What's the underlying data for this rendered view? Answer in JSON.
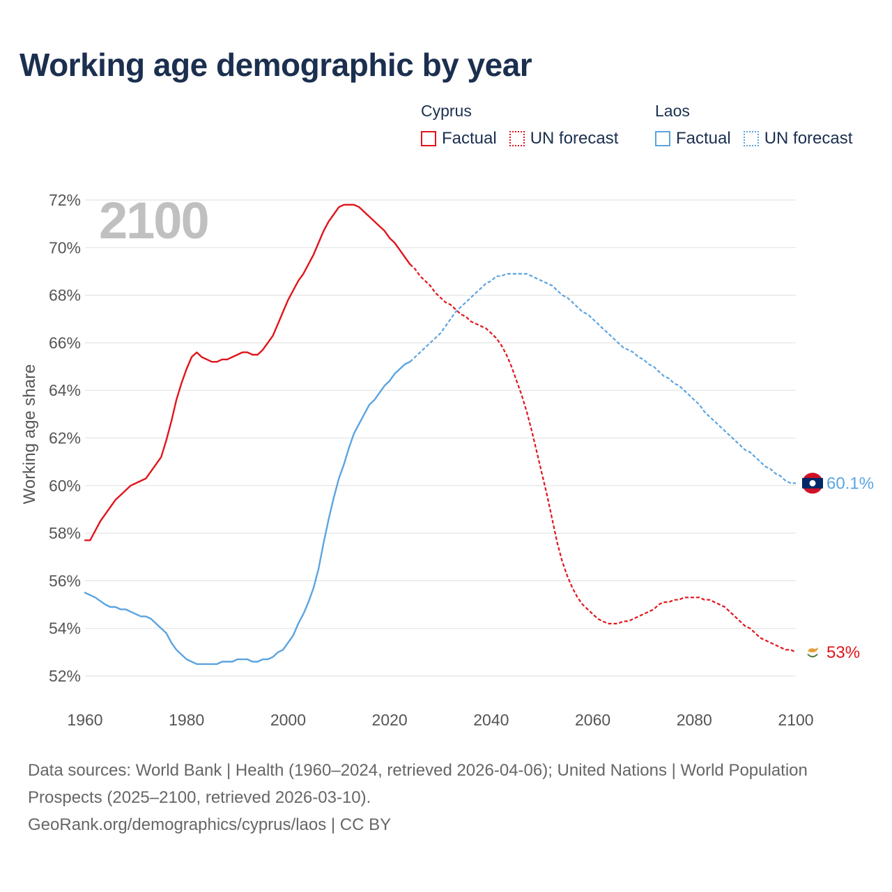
{
  "title": "Working age demographic by year",
  "legend": {
    "groups": [
      {
        "country": "Cyprus",
        "factual": "Factual",
        "forecast": "UN forecast"
      },
      {
        "country": "Laos",
        "factual": "Factual",
        "forecast": "UN forecast"
      }
    ]
  },
  "colors": {
    "cyprus": "#e1141b",
    "laos": "#5ba4e0",
    "title": "#1b2f4f",
    "year_watermark": "#c0c0c0"
  },
  "footer": {
    "sources": "Data sources: World Bank | Health (1960–2024, retrieved 2026-04-06); United Nations | World Population Prospects (2025–2100, retrieved 2026-03-10).",
    "credit": "GeoRank.org/demographics/cyprus/laos | CC BY"
  },
  "chart_data": {
    "type": "line",
    "title": "Working age demographic by year",
    "year_label": "2100",
    "xlabel": "",
    "ylabel": "Working age share",
    "xlim": [
      1960,
      2103
    ],
    "ylim": [
      51.5,
      72.5
    ],
    "x_ticks": [
      1960,
      1980,
      2000,
      2020,
      2040,
      2060,
      2080,
      2100
    ],
    "y_ticks": [
      52,
      54,
      56,
      58,
      60,
      62,
      64,
      66,
      68,
      70,
      72
    ],
    "y_tick_labels": [
      "52%",
      "54%",
      "56%",
      "58%",
      "60%",
      "62%",
      "64%",
      "66%",
      "68%",
      "70%",
      "72%"
    ],
    "grid": true,
    "series": [
      {
        "name": "Cyprus",
        "color": "#e1141b",
        "end_label": "53%",
        "end_icon": "cyprus-flag-icon",
        "factual": [
          [
            1960,
            57.7
          ],
          [
            1961,
            57.7
          ],
          [
            1962,
            58.1
          ],
          [
            1963,
            58.5
          ],
          [
            1964,
            58.8
          ],
          [
            1965,
            59.1
          ],
          [
            1966,
            59.4
          ],
          [
            1967,
            59.6
          ],
          [
            1968,
            59.8
          ],
          [
            1969,
            60.0
          ],
          [
            1970,
            60.1
          ],
          [
            1971,
            60.2
          ],
          [
            1972,
            60.3
          ],
          [
            1973,
            60.6
          ],
          [
            1974,
            60.9
          ],
          [
            1975,
            61.2
          ],
          [
            1976,
            61.9
          ],
          [
            1977,
            62.7
          ],
          [
            1978,
            63.6
          ],
          [
            1979,
            64.3
          ],
          [
            1980,
            64.9
          ],
          [
            1981,
            65.4
          ],
          [
            1982,
            65.6
          ],
          [
            1983,
            65.4
          ],
          [
            1984,
            65.3
          ],
          [
            1985,
            65.2
          ],
          [
            1986,
            65.2
          ],
          [
            1987,
            65.3
          ],
          [
            1988,
            65.3
          ],
          [
            1989,
            65.4
          ],
          [
            1990,
            65.5
          ],
          [
            1991,
            65.6
          ],
          [
            1992,
            65.6
          ],
          [
            1993,
            65.5
          ],
          [
            1994,
            65.5
          ],
          [
            1995,
            65.7
          ],
          [
            1996,
            66.0
          ],
          [
            1997,
            66.3
          ],
          [
            1998,
            66.8
          ],
          [
            1999,
            67.3
          ],
          [
            2000,
            67.8
          ],
          [
            2001,
            68.2
          ],
          [
            2002,
            68.6
          ],
          [
            2003,
            68.9
          ],
          [
            2004,
            69.3
          ],
          [
            2005,
            69.7
          ],
          [
            2006,
            70.2
          ],
          [
            2007,
            70.7
          ],
          [
            2008,
            71.1
          ],
          [
            2009,
            71.4
          ],
          [
            2010,
            71.7
          ],
          [
            2011,
            71.8
          ],
          [
            2012,
            71.8
          ],
          [
            2013,
            71.8
          ],
          [
            2014,
            71.7
          ],
          [
            2015,
            71.5
          ],
          [
            2016,
            71.3
          ],
          [
            2017,
            71.1
          ],
          [
            2018,
            70.9
          ],
          [
            2019,
            70.7
          ],
          [
            2020,
            70.4
          ],
          [
            2021,
            70.2
          ],
          [
            2022,
            69.9
          ],
          [
            2023,
            69.6
          ],
          [
            2024,
            69.3
          ]
        ],
        "forecast": [
          [
            2024,
            69.3
          ],
          [
            2025,
            69.1
          ],
          [
            2026,
            68.8
          ],
          [
            2027,
            68.6
          ],
          [
            2028,
            68.4
          ],
          [
            2029,
            68.1
          ],
          [
            2030,
            67.9
          ],
          [
            2031,
            67.7
          ],
          [
            2032,
            67.6
          ],
          [
            2033,
            67.4
          ],
          [
            2034,
            67.2
          ],
          [
            2035,
            67.1
          ],
          [
            2036,
            66.9
          ],
          [
            2037,
            66.8
          ],
          [
            2038,
            66.7
          ],
          [
            2039,
            66.6
          ],
          [
            2040,
            66.4
          ],
          [
            2041,
            66.2
          ],
          [
            2042,
            65.9
          ],
          [
            2043,
            65.5
          ],
          [
            2044,
            65.0
          ],
          [
            2045,
            64.4
          ],
          [
            2046,
            63.8
          ],
          [
            2047,
            63.1
          ],
          [
            2048,
            62.3
          ],
          [
            2049,
            61.4
          ],
          [
            2050,
            60.5
          ],
          [
            2051,
            59.6
          ],
          [
            2052,
            58.6
          ],
          [
            2053,
            57.6
          ],
          [
            2054,
            56.8
          ],
          [
            2055,
            56.2
          ],
          [
            2056,
            55.7
          ],
          [
            2057,
            55.3
          ],
          [
            2058,
            55.0
          ],
          [
            2059,
            54.8
          ],
          [
            2060,
            54.6
          ],
          [
            2061,
            54.4
          ],
          [
            2062,
            54.3
          ],
          [
            2063,
            54.2
          ],
          [
            2064,
            54.2
          ],
          [
            2065,
            54.2
          ],
          [
            2066,
            54.3
          ],
          [
            2067,
            54.3
          ],
          [
            2068,
            54.4
          ],
          [
            2069,
            54.5
          ],
          [
            2070,
            54.6
          ],
          [
            2071,
            54.7
          ],
          [
            2072,
            54.8
          ],
          [
            2073,
            55.0
          ],
          [
            2074,
            55.1
          ],
          [
            2075,
            55.1
          ],
          [
            2076,
            55.2
          ],
          [
            2077,
            55.2
          ],
          [
            2078,
            55.3
          ],
          [
            2079,
            55.3
          ],
          [
            2080,
            55.3
          ],
          [
            2081,
            55.3
          ],
          [
            2082,
            55.2
          ],
          [
            2083,
            55.2
          ],
          [
            2084,
            55.1
          ],
          [
            2085,
            55.0
          ],
          [
            2086,
            54.9
          ],
          [
            2087,
            54.7
          ],
          [
            2088,
            54.5
          ],
          [
            2089,
            54.3
          ],
          [
            2090,
            54.1
          ],
          [
            2091,
            54.0
          ],
          [
            2092,
            53.8
          ],
          [
            2093,
            53.6
          ],
          [
            2094,
            53.5
          ],
          [
            2095,
            53.4
          ],
          [
            2096,
            53.3
          ],
          [
            2097,
            53.2
          ],
          [
            2098,
            53.1
          ],
          [
            2099,
            53.1
          ],
          [
            2100,
            53.0
          ]
        ]
      },
      {
        "name": "Laos",
        "color": "#5ba4e0",
        "end_label": "60.1%",
        "end_icon": "laos-flag-icon",
        "factual": [
          [
            1960,
            55.5
          ],
          [
            1962,
            55.3
          ],
          [
            1964,
            55.0
          ],
          [
            1965,
            54.9
          ],
          [
            1966,
            54.9
          ],
          [
            1967,
            54.8
          ],
          [
            1968,
            54.8
          ],
          [
            1969,
            54.7
          ],
          [
            1970,
            54.6
          ],
          [
            1971,
            54.5
          ],
          [
            1972,
            54.5
          ],
          [
            1973,
            54.4
          ],
          [
            1974,
            54.2
          ],
          [
            1975,
            54.0
          ],
          [
            1976,
            53.8
          ],
          [
            1977,
            53.4
          ],
          [
            1978,
            53.1
          ],
          [
            1979,
            52.9
          ],
          [
            1980,
            52.7
          ],
          [
            1981,
            52.6
          ],
          [
            1982,
            52.5
          ],
          [
            1984,
            52.5
          ],
          [
            1985,
            52.5
          ],
          [
            1986,
            52.5
          ],
          [
            1987,
            52.6
          ],
          [
            1988,
            52.6
          ],
          [
            1989,
            52.6
          ],
          [
            1990,
            52.7
          ],
          [
            1991,
            52.7
          ],
          [
            1992,
            52.7
          ],
          [
            1993,
            52.6
          ],
          [
            1994,
            52.6
          ],
          [
            1995,
            52.7
          ],
          [
            1996,
            52.7
          ],
          [
            1997,
            52.8
          ],
          [
            1998,
            53.0
          ],
          [
            1999,
            53.1
          ],
          [
            2000,
            53.4
          ],
          [
            2001,
            53.7
          ],
          [
            2002,
            54.2
          ],
          [
            2003,
            54.6
          ],
          [
            2004,
            55.1
          ],
          [
            2005,
            55.7
          ],
          [
            2006,
            56.5
          ],
          [
            2007,
            57.6
          ],
          [
            2008,
            58.6
          ],
          [
            2009,
            59.5
          ],
          [
            2010,
            60.3
          ],
          [
            2011,
            60.9
          ],
          [
            2012,
            61.6
          ],
          [
            2013,
            62.2
          ],
          [
            2014,
            62.6
          ],
          [
            2015,
            63.0
          ],
          [
            2016,
            63.4
          ],
          [
            2017,
            63.6
          ],
          [
            2018,
            63.9
          ],
          [
            2019,
            64.2
          ],
          [
            2020,
            64.4
          ],
          [
            2021,
            64.7
          ],
          [
            2022,
            64.9
          ],
          [
            2023,
            65.1
          ],
          [
            2024,
            65.2
          ]
        ],
        "forecast": [
          [
            2024,
            65.2
          ],
          [
            2025,
            65.4
          ],
          [
            2026,
            65.6
          ],
          [
            2027,
            65.8
          ],
          [
            2028,
            66.0
          ],
          [
            2029,
            66.2
          ],
          [
            2030,
            66.4
          ],
          [
            2031,
            66.7
          ],
          [
            2032,
            67.0
          ],
          [
            2033,
            67.3
          ],
          [
            2034,
            67.5
          ],
          [
            2035,
            67.7
          ],
          [
            2036,
            67.9
          ],
          [
            2037,
            68.1
          ],
          [
            2038,
            68.3
          ],
          [
            2039,
            68.5
          ],
          [
            2040,
            68.6
          ],
          [
            2041,
            68.8
          ],
          [
            2042,
            68.8
          ],
          [
            2043,
            68.9
          ],
          [
            2044,
            68.9
          ],
          [
            2045,
            68.9
          ],
          [
            2046,
            68.9
          ],
          [
            2047,
            68.9
          ],
          [
            2048,
            68.8
          ],
          [
            2049,
            68.7
          ],
          [
            2050,
            68.6
          ],
          [
            2051,
            68.5
          ],
          [
            2052,
            68.4
          ],
          [
            2053,
            68.2
          ],
          [
            2054,
            68.0
          ],
          [
            2055,
            67.9
          ],
          [
            2056,
            67.7
          ],
          [
            2057,
            67.5
          ],
          [
            2058,
            67.3
          ],
          [
            2059,
            67.2
          ],
          [
            2060,
            67.0
          ],
          [
            2061,
            66.8
          ],
          [
            2062,
            66.6
          ],
          [
            2063,
            66.4
          ],
          [
            2064,
            66.2
          ],
          [
            2065,
            66.0
          ],
          [
            2066,
            65.8
          ],
          [
            2067,
            65.7
          ],
          [
            2068,
            65.6
          ],
          [
            2069,
            65.4
          ],
          [
            2070,
            65.3
          ],
          [
            2071,
            65.1
          ],
          [
            2072,
            65.0
          ],
          [
            2073,
            64.8
          ],
          [
            2074,
            64.6
          ],
          [
            2075,
            64.5
          ],
          [
            2076,
            64.3
          ],
          [
            2077,
            64.2
          ],
          [
            2078,
            64.0
          ],
          [
            2079,
            63.8
          ],
          [
            2080,
            63.6
          ],
          [
            2081,
            63.4
          ],
          [
            2082,
            63.1
          ],
          [
            2083,
            62.9
          ],
          [
            2084,
            62.7
          ],
          [
            2085,
            62.5
          ],
          [
            2086,
            62.3
          ],
          [
            2087,
            62.1
          ],
          [
            2088,
            61.9
          ],
          [
            2089,
            61.7
          ],
          [
            2090,
            61.5
          ],
          [
            2091,
            61.4
          ],
          [
            2092,
            61.2
          ],
          [
            2093,
            61.0
          ],
          [
            2094,
            60.8
          ],
          [
            2095,
            60.7
          ],
          [
            2096,
            60.5
          ],
          [
            2097,
            60.4
          ],
          [
            2098,
            60.2
          ],
          [
            2099,
            60.1
          ],
          [
            2100,
            60.1
          ]
        ]
      }
    ]
  }
}
